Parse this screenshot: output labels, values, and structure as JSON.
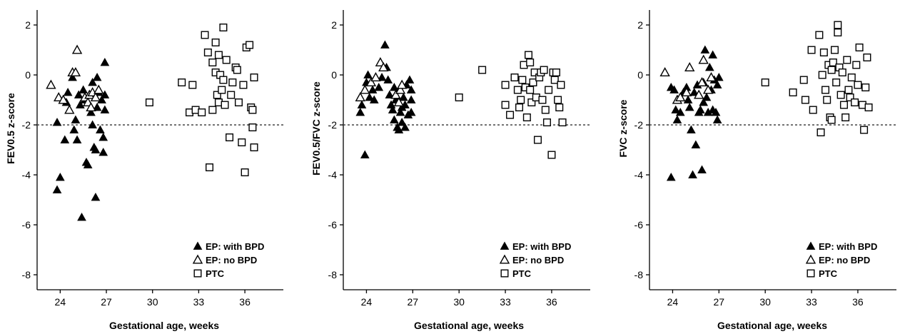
{
  "chart_data": [
    {
      "type": "scatter",
      "ylabel": "FEV0.5 z-score",
      "xlabel": "Gestational age, weeks",
      "xticks": [
        "24",
        "27",
        "30",
        "33",
        "36"
      ],
      "yticks": [
        "2",
        "0",
        "-2",
        "-4",
        "-6",
        "-8"
      ],
      "xlim": [
        22.5,
        38.5
      ],
      "ylim": [
        -8.6,
        2.6
      ],
      "reference_line_y": -2,
      "grid": false,
      "legend_position": "bottom-right",
      "series": [
        {
          "name": "EP: with BPD",
          "marker": "filled-triangle",
          "points": [
            [
              23.8,
              -4.6
            ],
            [
              24.0,
              -4.1
            ],
            [
              23.8,
              -1.9
            ],
            [
              24.3,
              -2.6
            ],
            [
              24.4,
              -1.1
            ],
            [
              24.5,
              -0.7
            ],
            [
              24.8,
              -0.1
            ],
            [
              24.9,
              -2.2
            ],
            [
              25.0,
              -1.8
            ],
            [
              25.1,
              -2.6
            ],
            [
              25.2,
              -0.8
            ],
            [
              25.3,
              -1.2
            ],
            [
              25.4,
              -5.7
            ],
            [
              25.5,
              -0.6
            ],
            [
              25.6,
              -1.0
            ],
            [
              25.7,
              -3.5
            ],
            [
              25.8,
              -3.6
            ],
            [
              25.9,
              -0.8
            ],
            [
              26.0,
              -1.5
            ],
            [
              26.1,
              -0.3
            ],
            [
              26.1,
              -2.0
            ],
            [
              26.2,
              -2.9
            ],
            [
              26.3,
              -3.0
            ],
            [
              26.3,
              -4.9
            ],
            [
              26.4,
              -0.1
            ],
            [
              26.4,
              -1.3
            ],
            [
              26.5,
              -0.7
            ],
            [
              26.6,
              -2.2
            ],
            [
              26.7,
              -1.0
            ],
            [
              26.8,
              -3.1
            ],
            [
              26.8,
              -2.5
            ],
            [
              26.9,
              -0.8
            ],
            [
              26.9,
              -1.4
            ],
            [
              26.9,
              0.5
            ]
          ]
        },
        {
          "name": "EP: no BPD",
          "marker": "open-triangle",
          "points": [
            [
              23.4,
              -0.4
            ],
            [
              23.9,
              -0.9
            ],
            [
              24.2,
              -1.0
            ],
            [
              24.6,
              -1.4
            ],
            [
              24.8,
              0.1
            ],
            [
              25.0,
              0.1
            ],
            [
              25.1,
              1.0
            ],
            [
              25.6,
              -0.9
            ],
            [
              25.8,
              -1.1
            ],
            [
              25.9,
              -0.8
            ],
            [
              26.0,
              -1.3
            ],
            [
              26.1,
              -0.7
            ],
            [
              26.3,
              -0.9
            ],
            [
              26.5,
              -0.6
            ]
          ]
        },
        {
          "name": "PTC",
          "marker": "open-square",
          "points": [
            [
              29.8,
              -1.1
            ],
            [
              31.9,
              -0.3
            ],
            [
              32.4,
              -1.5
            ],
            [
              32.6,
              -0.4
            ],
            [
              32.8,
              -1.4
            ],
            [
              33.2,
              -1.5
            ],
            [
              33.4,
              1.6
            ],
            [
              33.6,
              0.9
            ],
            [
              33.7,
              -3.7
            ],
            [
              33.9,
              -1.4
            ],
            [
              33.9,
              0.5
            ],
            [
              34.1,
              1.3
            ],
            [
              34.1,
              0.1
            ],
            [
              34.2,
              -0.8
            ],
            [
              34.3,
              -1.1
            ],
            [
              34.3,
              0.8
            ],
            [
              34.4,
              0.0
            ],
            [
              34.5,
              -0.6
            ],
            [
              34.6,
              1.9
            ],
            [
              34.6,
              -0.2
            ],
            [
              34.7,
              -1.2
            ],
            [
              34.8,
              0.6
            ],
            [
              35.0,
              -2.5
            ],
            [
              35.1,
              -0.8
            ],
            [
              35.2,
              -0.3
            ],
            [
              35.4,
              0.3
            ],
            [
              35.5,
              0.2
            ],
            [
              35.6,
              -1.1
            ],
            [
              35.8,
              -2.7
            ],
            [
              35.9,
              -0.4
            ],
            [
              36.0,
              -3.9
            ],
            [
              36.1,
              1.1
            ],
            [
              36.3,
              1.2
            ],
            [
              36.4,
              -1.3
            ],
            [
              36.5,
              -1.4
            ],
            [
              36.5,
              -2.1
            ],
            [
              36.6,
              -2.9
            ],
            [
              36.6,
              -0.1
            ]
          ]
        }
      ]
    },
    {
      "type": "scatter",
      "ylabel": "FEV0.5/FVC z-score",
      "xlabel": "Gestational age, weeks",
      "xticks": [
        "24",
        "27",
        "30",
        "33",
        "36"
      ],
      "yticks": [
        "2",
        "0",
        "-2",
        "-4",
        "-6",
        "-8"
      ],
      "xlim": [
        22.5,
        38.5
      ],
      "ylim": [
        -8.6,
        2.6
      ],
      "reference_line_y": -2,
      "grid": false,
      "legend_position": "bottom-right",
      "series": [
        {
          "name": "EP: with BPD",
          "marker": "filled-triangle",
          "points": [
            [
              23.9,
              -3.2
            ],
            [
              24.0,
              -0.3
            ],
            [
              24.1,
              0.0
            ],
            [
              24.2,
              -0.9
            ],
            [
              24.4,
              -0.6
            ],
            [
              23.6,
              -1.5
            ],
            [
              23.7,
              -1.2
            ],
            [
              24.5,
              -1.0
            ],
            [
              24.8,
              -0.5
            ],
            [
              25.0,
              -0.1
            ],
            [
              25.2,
              1.2
            ],
            [
              25.3,
              0.3
            ],
            [
              25.4,
              -0.2
            ],
            [
              25.5,
              -0.8
            ],
            [
              25.6,
              -1.2
            ],
            [
              25.7,
              -1.4
            ],
            [
              25.8,
              -1.8
            ],
            [
              25.8,
              -0.5
            ],
            [
              25.9,
              -1.0
            ],
            [
              26.0,
              -2.1
            ],
            [
              26.1,
              -2.2
            ],
            [
              26.1,
              -0.6
            ],
            [
              26.2,
              -1.5
            ],
            [
              26.3,
              -1.3
            ],
            [
              26.3,
              -1.9
            ],
            [
              26.4,
              -0.9
            ],
            [
              26.5,
              -1.2
            ],
            [
              26.5,
              -2.1
            ],
            [
              26.6,
              -0.4
            ],
            [
              26.7,
              -1.6
            ],
            [
              26.8,
              -0.2
            ],
            [
              26.9,
              -1.0
            ],
            [
              26.9,
              -1.5
            ],
            [
              26.9,
              -0.6
            ]
          ]
        },
        {
          "name": "EP: no BPD",
          "marker": "open-triangle",
          "points": [
            [
              23.6,
              -0.9
            ],
            [
              23.9,
              -0.6
            ],
            [
              24.3,
              -0.3
            ],
            [
              24.6,
              -0.1
            ],
            [
              24.9,
              0.5
            ],
            [
              25.1,
              0.3
            ],
            [
              25.9,
              -0.8
            ],
            [
              26.1,
              -1.1
            ],
            [
              26.2,
              -0.6
            ],
            [
              26.3,
              -0.4
            ]
          ]
        },
        {
          "name": "PTC",
          "marker": "open-square",
          "points": [
            [
              30.0,
              -0.9
            ],
            [
              31.5,
              0.2
            ],
            [
              33.0,
              -0.4
            ],
            [
              33.0,
              -1.2
            ],
            [
              33.3,
              -1.6
            ],
            [
              33.6,
              -0.1
            ],
            [
              33.8,
              -0.6
            ],
            [
              33.9,
              -1.3
            ],
            [
              34.0,
              -1.0
            ],
            [
              34.1,
              -0.2
            ],
            [
              34.2,
              0.4
            ],
            [
              34.3,
              -0.5
            ],
            [
              34.4,
              -1.7
            ],
            [
              34.5,
              0.8
            ],
            [
              34.6,
              0.5
            ],
            [
              34.6,
              -0.6
            ],
            [
              34.7,
              -1.1
            ],
            [
              34.8,
              -0.3
            ],
            [
              34.9,
              0.1
            ],
            [
              35.0,
              -0.9
            ],
            [
              35.1,
              -2.6
            ],
            [
              35.2,
              -0.1
            ],
            [
              35.3,
              0.1
            ],
            [
              35.4,
              -1.0
            ],
            [
              35.5,
              0.2
            ],
            [
              35.6,
              -1.4
            ],
            [
              35.7,
              -1.9
            ],
            [
              35.8,
              -0.6
            ],
            [
              36.0,
              -3.2
            ],
            [
              36.1,
              0.1
            ],
            [
              36.2,
              -0.2
            ],
            [
              36.3,
              0.1
            ],
            [
              36.4,
              -1.0
            ],
            [
              36.5,
              -1.3
            ],
            [
              36.6,
              -0.4
            ],
            [
              36.7,
              -1.9
            ]
          ]
        }
      ]
    },
    {
      "type": "scatter",
      "ylabel": "FVC z-score",
      "xlabel": "Gestational age, weeks",
      "xticks": [
        "24",
        "27",
        "30",
        "33",
        "36"
      ],
      "yticks": [
        "2",
        "0",
        "-2",
        "-4",
        "-6",
        "-8"
      ],
      "xlim": [
        22.5,
        38.5
      ],
      "ylim": [
        -8.6,
        2.6
      ],
      "reference_line_y": -2,
      "grid": false,
      "legend_position": "bottom-right",
      "series": [
        {
          "name": "EP: with BPD",
          "marker": "filled-triangle",
          "points": [
            [
              23.9,
              -4.1
            ],
            [
              23.9,
              -0.5
            ],
            [
              24.1,
              -0.6
            ],
            [
              24.2,
              -1.4
            ],
            [
              24.3,
              -1.8
            ],
            [
              24.5,
              -1.5
            ],
            [
              24.7,
              -0.7
            ],
            [
              24.9,
              -0.5
            ],
            [
              25.0,
              -1.0
            ],
            [
              25.1,
              -1.3
            ],
            [
              25.2,
              -2.2
            ],
            [
              25.3,
              -4.0
            ],
            [
              25.4,
              -0.7
            ],
            [
              25.5,
              -2.8
            ],
            [
              25.6,
              -0.4
            ],
            [
              25.7,
              -1.5
            ],
            [
              25.8,
              -1.4
            ],
            [
              25.9,
              -3.8
            ],
            [
              26.0,
              -0.3
            ],
            [
              26.0,
              -1.1
            ],
            [
              26.1,
              1.0
            ],
            [
              26.2,
              -0.9
            ],
            [
              26.3,
              -1.5
            ],
            [
              26.4,
              0.3
            ],
            [
              26.5,
              -0.6
            ],
            [
              26.6,
              0.8
            ],
            [
              26.6,
              -1.4
            ],
            [
              26.7,
              -0.2
            ],
            [
              26.8,
              -1.5
            ],
            [
              26.9,
              -0.4
            ],
            [
              26.9,
              -1.8
            ],
            [
              27.0,
              -0.1
            ]
          ]
        },
        {
          "name": "EP: no BPD",
          "marker": "open-triangle",
          "points": [
            [
              23.5,
              0.1
            ],
            [
              24.3,
              -1.0
            ],
            [
              24.5,
              -0.9
            ],
            [
              24.9,
              -0.7
            ],
            [
              25.1,
              0.3
            ],
            [
              25.7,
              -0.8
            ],
            [
              25.9,
              -0.3
            ],
            [
              26.0,
              0.6
            ],
            [
              26.3,
              -0.6
            ],
            [
              26.5,
              -0.1
            ]
          ]
        },
        {
          "name": "PTC",
          "marker": "open-square",
          "points": [
            [
              30.0,
              -0.3
            ],
            [
              31.8,
              -0.7
            ],
            [
              32.5,
              -0.2
            ],
            [
              32.6,
              -1.0
            ],
            [
              33.0,
              1.0
            ],
            [
              33.1,
              -1.4
            ],
            [
              33.5,
              1.6
            ],
            [
              33.6,
              -2.3
            ],
            [
              33.7,
              0.0
            ],
            [
              33.8,
              0.9
            ],
            [
              33.9,
              -0.6
            ],
            [
              34.0,
              -1.0
            ],
            [
              34.1,
              0.4
            ],
            [
              34.2,
              -1.7
            ],
            [
              34.3,
              -1.8
            ],
            [
              34.3,
              0.2
            ],
            [
              34.4,
              0.5
            ],
            [
              34.5,
              1.0
            ],
            [
              34.6,
              -0.3
            ],
            [
              34.7,
              1.7
            ],
            [
              34.7,
              2.0
            ],
            [
              34.8,
              0.3
            ],
            [
              34.9,
              -0.8
            ],
            [
              35.0,
              0.1
            ],
            [
              35.1,
              -1.2
            ],
            [
              35.2,
              -1.7
            ],
            [
              35.3,
              0.6
            ],
            [
              35.4,
              -0.6
            ],
            [
              35.5,
              -0.9
            ],
            [
              35.6,
              -0.1
            ],
            [
              35.8,
              -1.1
            ],
            [
              35.9,
              0.4
            ],
            [
              36.0,
              -0.4
            ],
            [
              36.1,
              1.1
            ],
            [
              36.3,
              -1.2
            ],
            [
              36.4,
              -2.2
            ],
            [
              36.5,
              -0.5
            ],
            [
              36.6,
              0.7
            ],
            [
              36.7,
              -1.3
            ]
          ]
        }
      ]
    }
  ]
}
